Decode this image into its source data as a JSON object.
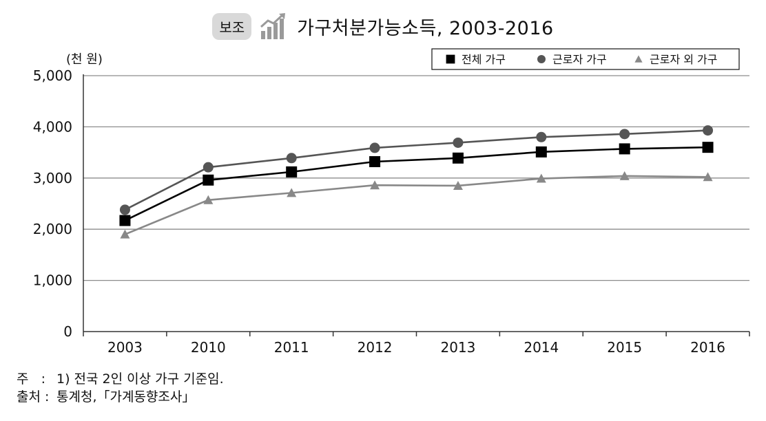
{
  "header": {
    "badge": "보조",
    "badge_icon": "bar-chart-trend-icon",
    "title": "가구처분가능소득, 2003-2016"
  },
  "chart_data": {
    "type": "line",
    "title": "가구처분가능소득, 2003-2016",
    "ylabel": "(천 원)",
    "xlabel": "",
    "categories": [
      "2003",
      "2010",
      "2011",
      "2012",
      "2013",
      "2014",
      "2015",
      "2016"
    ],
    "ylim": [
      0,
      5000
    ],
    "yticks": [
      {
        "value": 0,
        "label": "0"
      },
      {
        "value": 1000,
        "label": "1,000"
      },
      {
        "value": 2000,
        "label": "2,000"
      },
      {
        "value": 3000,
        "label": "3,000"
      },
      {
        "value": 4000,
        "label": "4,000"
      },
      {
        "value": 5000,
        "label": "5,000"
      }
    ],
    "grid": true,
    "legend_position": "top-right",
    "series": [
      {
        "name": "전체 가구",
        "marker": "square",
        "color": "#000000",
        "values": [
          2170,
          2960,
          3120,
          3320,
          3390,
          3510,
          3570,
          3600
        ]
      },
      {
        "name": "근로자 가구",
        "marker": "circle",
        "color": "#555555",
        "values": [
          2380,
          3210,
          3390,
          3590,
          3690,
          3800,
          3860,
          3930
        ]
      },
      {
        "name": "근로자 외 가구",
        "marker": "triangle",
        "color": "#888888",
        "values": [
          1900,
          2570,
          2710,
          2860,
          2850,
          2990,
          3040,
          3020
        ]
      }
    ]
  },
  "notes": [
    {
      "label": "주",
      "sep": ":",
      "text": "1) 전국 2인 이상 가구 기준임."
    },
    {
      "label": "출처",
      "sep": ":",
      "text": "통계청,「가계동향조사」"
    }
  ]
}
